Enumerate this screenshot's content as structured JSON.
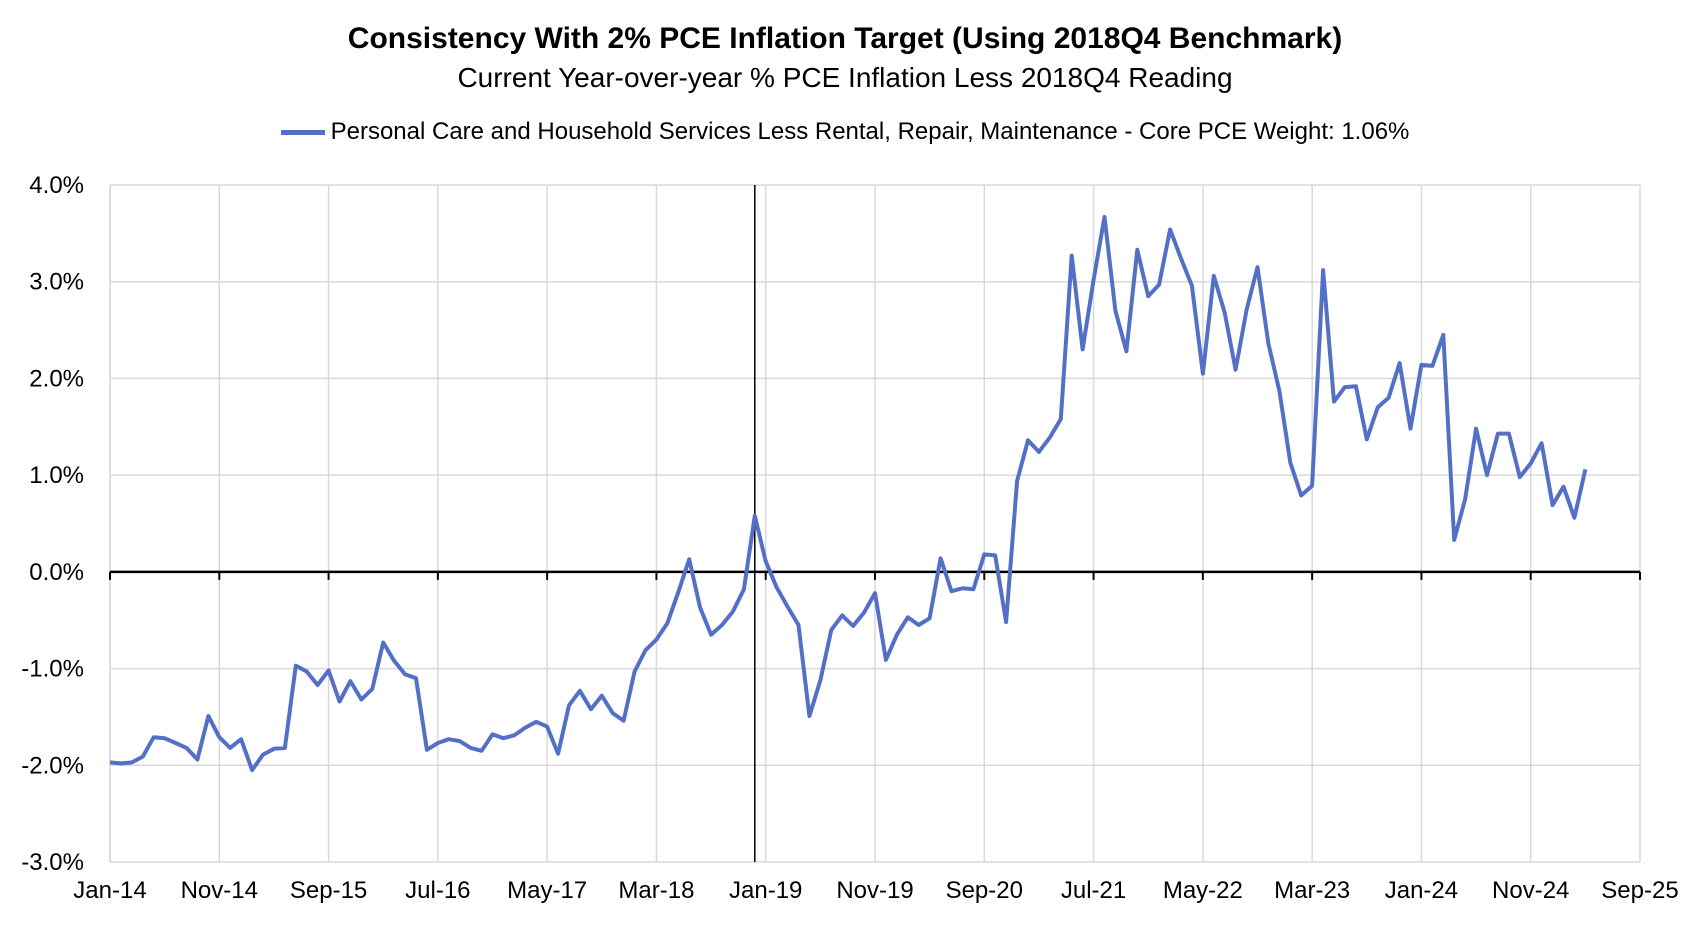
{
  "chart_data": {
    "type": "line",
    "title": "Consistency With 2% PCE Inflation Target (Using 2018Q4 Benchmark)",
    "subtitle": "Current Year-over-year % PCE Inflation Less 2018Q4 Reading",
    "xlabel": "",
    "ylabel": "",
    "ylim": [
      -3.0,
      4.0
    ],
    "y_ticks": [
      "4.0%",
      "3.0%",
      "2.0%",
      "1.0%",
      "0.0%",
      "-1.0%",
      "-2.0%",
      "-3.0%"
    ],
    "y_tick_values": [
      4.0,
      3.0,
      2.0,
      1.0,
      0.0,
      -1.0,
      -2.0,
      -3.0
    ],
    "x_ticks": [
      "Jan-14",
      "Nov-14",
      "Sep-15",
      "Jul-16",
      "May-17",
      "Mar-18",
      "Jan-19",
      "Nov-19",
      "Sep-20",
      "Jul-21",
      "May-22",
      "Mar-23",
      "Jan-24",
      "Nov-24",
      "Sep-25"
    ],
    "x_start": "Jan-14",
    "x_end": "Sep-25",
    "vertical_line_at": "Dec-18",
    "grid": true,
    "legend_position": "top",
    "series": [
      {
        "name": "Personal Care and Household Services Less Rental, Repair, Maintenance  - Core PCE Weight: 1.06%",
        "color": "#5470c6",
        "values": [
          -1.97,
          -1.98,
          -1.97,
          -1.91,
          -1.71,
          -1.72,
          -1.77,
          -1.82,
          -1.94,
          -1.49,
          -1.71,
          -1.82,
          -1.73,
          -2.05,
          -1.89,
          -1.83,
          -1.82,
          -0.97,
          -1.03,
          -1.17,
          -1.02,
          -1.34,
          -1.13,
          -1.32,
          -1.21,
          -0.73,
          -0.92,
          -1.06,
          -1.1,
          -1.84,
          -1.77,
          -1.73,
          -1.75,
          -1.82,
          -1.85,
          -1.68,
          -1.72,
          -1.69,
          -1.61,
          -1.55,
          -1.6,
          -1.88,
          -1.38,
          -1.23,
          -1.42,
          -1.28,
          -1.46,
          -1.54,
          -1.03,
          -0.81,
          -0.7,
          -0.53,
          -0.21,
          0.13,
          -0.37,
          -0.65,
          -0.55,
          -0.41,
          -0.18,
          0.58,
          0.11,
          -0.16,
          -0.36,
          -0.55,
          -1.49,
          -1.12,
          -0.6,
          -0.45,
          -0.56,
          -0.42,
          -0.22,
          -0.91,
          -0.65,
          -0.47,
          -0.55,
          -0.48,
          0.14,
          -0.2,
          -0.17,
          -0.18,
          0.18,
          0.17,
          -0.52,
          0.94,
          1.36,
          1.24,
          1.39,
          1.58,
          3.27,
          2.3,
          3.02,
          3.67,
          2.7,
          2.28,
          3.33,
          2.85,
          2.97,
          3.54,
          3.24,
          2.96,
          2.05,
          3.06,
          2.68,
          2.09,
          2.71,
          3.15,
          2.36,
          1.87,
          1.13,
          0.79,
          0.89,
          3.12,
          1.76,
          1.91,
          1.92,
          1.37,
          1.7,
          1.8,
          2.16,
          1.48,
          2.14,
          2.13,
          2.45,
          0.33,
          0.75,
          1.48,
          1.0,
          1.43,
          1.43,
          0.98,
          1.12,
          1.33,
          0.69,
          0.88,
          0.56,
          1.06
        ]
      }
    ]
  }
}
